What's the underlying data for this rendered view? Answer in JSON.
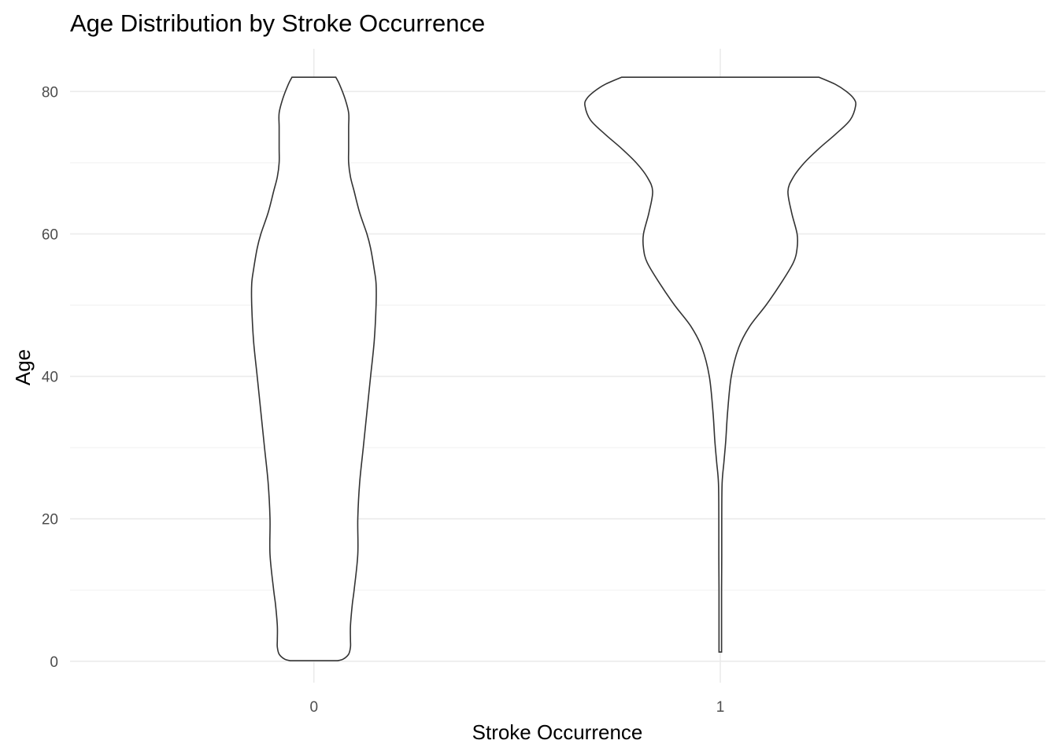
{
  "chart_data": {
    "type": "violin",
    "title": "Age Distribution by Stroke Occurrence",
    "xlabel": "Stroke Occurrence",
    "ylabel": "Age",
    "categories": [
      "0",
      "1"
    ],
    "ylim": [
      -3,
      86
    ],
    "yticks": [
      0,
      20,
      40,
      60,
      80
    ],
    "grid": true,
    "legend": "none",
    "colors": {
      "outline": "#333333",
      "fill": "#ffffff",
      "grid": "#ebebeb",
      "tick_text": "#4d4d4d"
    },
    "series": [
      {
        "category": "0",
        "density": [
          [
            0.08,
            0.13
          ],
          [
            0.3,
            0.16
          ],
          [
            1,
            0.19
          ],
          [
            2,
            0.2
          ],
          [
            3,
            0.2
          ],
          [
            5,
            0.2
          ],
          [
            8,
            0.21
          ],
          [
            10,
            0.22
          ],
          [
            15,
            0.24
          ],
          [
            20,
            0.24
          ],
          [
            25,
            0.25
          ],
          [
            30,
            0.27
          ],
          [
            35,
            0.29
          ],
          [
            40,
            0.31
          ],
          [
            45,
            0.33
          ],
          [
            50,
            0.34
          ],
          [
            53,
            0.34
          ],
          [
            55,
            0.33
          ],
          [
            58,
            0.31
          ],
          [
            60,
            0.29
          ],
          [
            63,
            0.25
          ],
          [
            66,
            0.22
          ],
          [
            68,
            0.2
          ],
          [
            70,
            0.19
          ],
          [
            72,
            0.19
          ],
          [
            75,
            0.19
          ],
          [
            77,
            0.19
          ],
          [
            79,
            0.17
          ],
          [
            81,
            0.14
          ],
          [
            82,
            0.12
          ]
        ]
      },
      {
        "category": "1",
        "density": [
          [
            1.3,
            0.007
          ],
          [
            3,
            0.007
          ],
          [
            6,
            0.007
          ],
          [
            10,
            0.007
          ],
          [
            15,
            0.008
          ],
          [
            20,
            0.008
          ],
          [
            25,
            0.01
          ],
          [
            28,
            0.02
          ],
          [
            31,
            0.03
          ],
          [
            35,
            0.04
          ],
          [
            40,
            0.06
          ],
          [
            44,
            0.1
          ],
          [
            47,
            0.16
          ],
          [
            50,
            0.25
          ],
          [
            53,
            0.33
          ],
          [
            56,
            0.4
          ],
          [
            58,
            0.42
          ],
          [
            60,
            0.42
          ],
          [
            63,
            0.39
          ],
          [
            66,
            0.37
          ],
          [
            68,
            0.4
          ],
          [
            70,
            0.46
          ],
          [
            72,
            0.54
          ],
          [
            74,
            0.63
          ],
          [
            76,
            0.71
          ],
          [
            78,
            0.74
          ],
          [
            79,
            0.73
          ],
          [
            80,
            0.69
          ],
          [
            81,
            0.63
          ],
          [
            82,
            0.54
          ]
        ]
      }
    ]
  }
}
